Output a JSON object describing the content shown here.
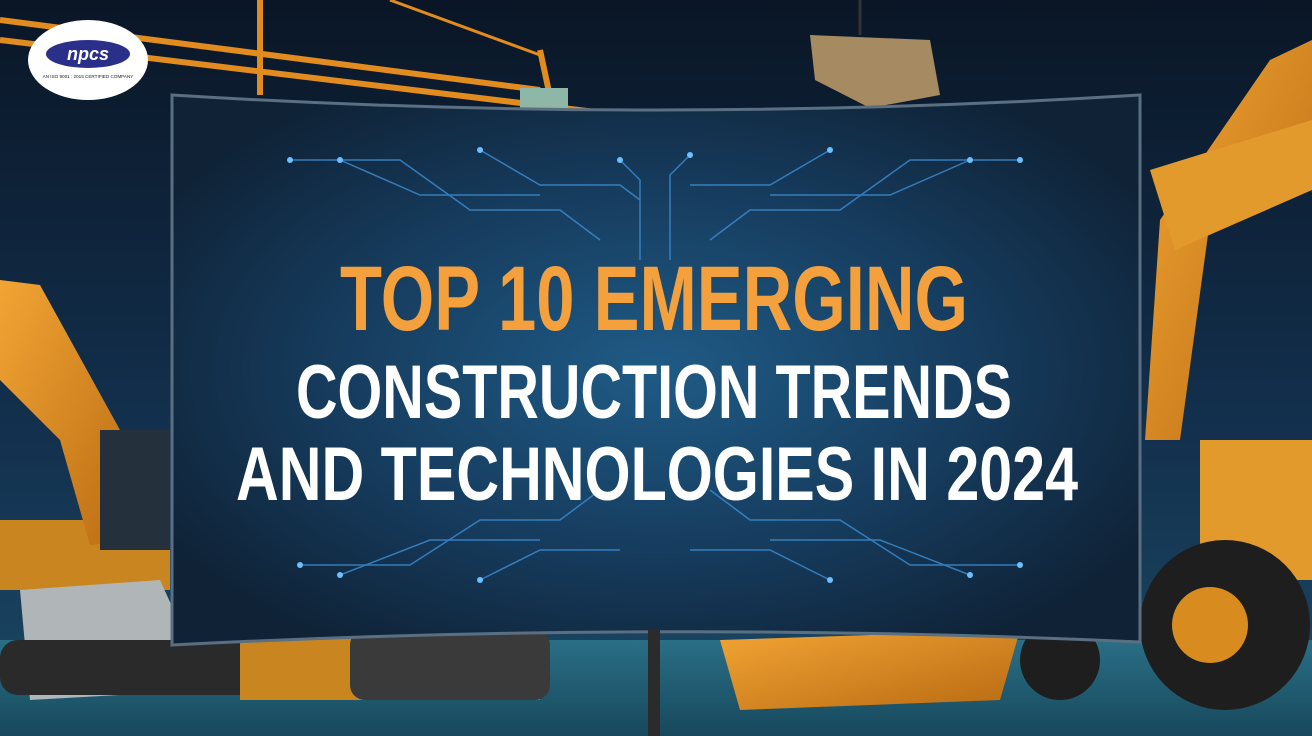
{
  "logo": {
    "name": "npcs",
    "tagline": "AN ISO 9001 : 2015 CERTIFIED COMPANY"
  },
  "headline": {
    "highlight": "TOP 10 EMERGING",
    "lines": [
      "CONSTRUCTION TRENDS",
      "AND TECHNOLOGIES IN 2024"
    ]
  }
}
